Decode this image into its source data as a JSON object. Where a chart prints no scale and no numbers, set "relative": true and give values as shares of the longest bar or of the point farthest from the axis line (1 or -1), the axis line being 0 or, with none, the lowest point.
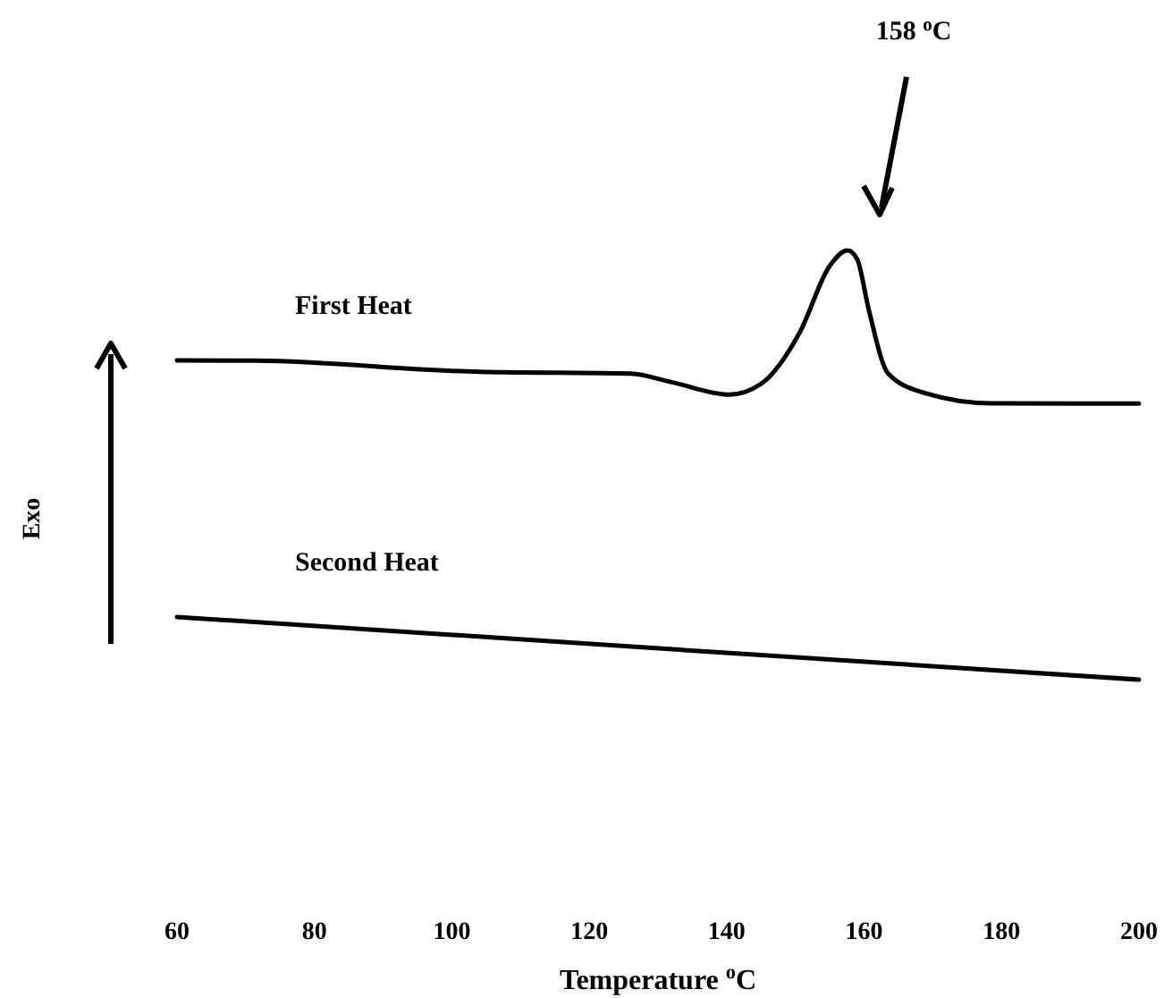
{
  "chart_data": {
    "type": "line",
    "relative": true,
    "xlabel": "Temperature $^{o}$C",
    "ylabel": "Exo",
    "xlim": [
      60,
      200
    ],
    "xticks": [
      60,
      80,
      100,
      120,
      140,
      160,
      180,
      200
    ],
    "grid": false,
    "marker": "none",
    "line_style": "solid",
    "annotations": [
      "158 $^{o}$C"
    ],
    "series": [
      {
        "name": "First Heat",
        "color": "#000000",
        "x": [
          60,
          71.6,
          104,
          126,
          132,
          140.4,
          145,
          150.6,
          155,
          157.6,
          159,
          160.7,
          163.5,
          169,
          178.4,
          200
        ],
        "values": [
          0.744,
          0.743,
          0.717,
          0.713,
          0.693,
          0.664,
          0.689,
          0.808,
          0.964,
          1.0,
          0.979,
          0.86,
          0.713,
          0.667,
          0.644,
          0.643
        ]
      },
      {
        "name": "Second Heat",
        "color": "#000000",
        "x": [
          60,
          200
        ],
        "values": [
          0.146,
          0
        ]
      }
    ]
  }
}
